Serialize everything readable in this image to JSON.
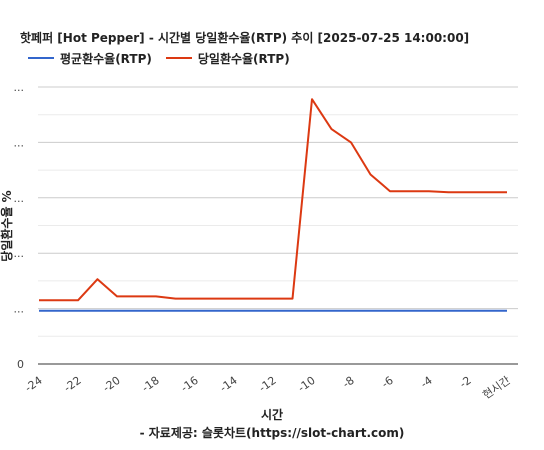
{
  "chart_data": {
    "type": "line",
    "title": "핫페퍼 [Hot Pepper] - 시간별 당일환수율(RTP) 추이 [2025-07-25 14:00:00]",
    "xlabel": "시간",
    "ylabel": "당일환수율 %",
    "source": "- 자료제공: 슬롯차트(https://slot-chart.com)",
    "x_tick_labels": [
      "-24",
      "-22",
      "-20",
      "-18",
      "-16",
      "-14",
      "-12",
      "-10",
      "-8",
      "-6",
      "-4",
      "-2",
      "현시간"
    ],
    "y_tick_labels": [
      "0",
      "...",
      "...",
      "...",
      "...",
      "..."
    ],
    "ylim": [
      0,
      500
    ],
    "grid": true,
    "legend_position": "top-left",
    "x": [
      -24,
      -23,
      -22,
      -21,
      -20,
      -19,
      -18,
      -17,
      -16,
      -15,
      -14,
      -13,
      -12,
      -11,
      -10,
      -9,
      -8,
      -7,
      -6,
      -5,
      -4,
      -3,
      -2,
      -1,
      0
    ],
    "series": [
      {
        "name": "평균환수율(RTP)",
        "color": "#3366cc",
        "values": [
          96,
          96,
          96,
          96,
          96,
          96,
          96,
          96,
          96,
          96,
          96,
          96,
          96,
          96,
          96,
          96,
          96,
          96,
          96,
          96,
          96,
          96,
          96,
          96,
          96
        ]
      },
      {
        "name": "당일환수율(RTP)",
        "color": "#dc3912",
        "values": [
          115,
          115,
          115,
          153,
          122,
          122,
          122,
          118,
          118,
          118,
          118,
          118,
          118,
          118,
          478,
          424,
          400,
          342,
          312,
          312,
          312,
          310,
          310,
          310,
          310
        ]
      }
    ]
  }
}
